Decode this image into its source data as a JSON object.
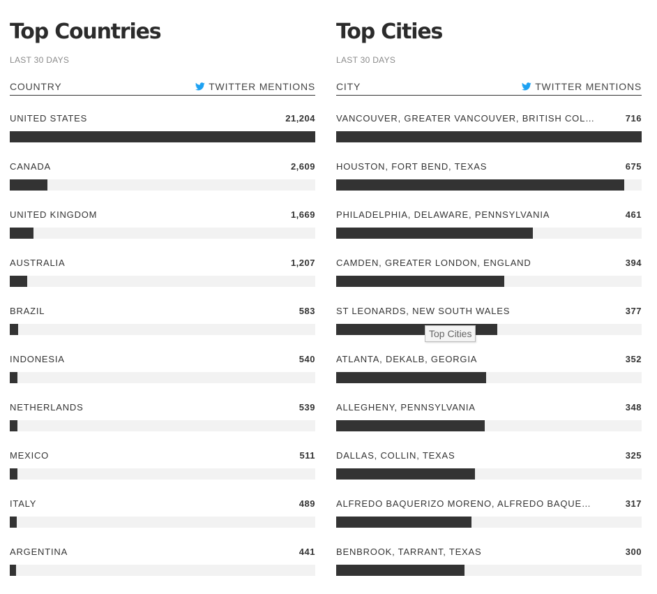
{
  "colors": {
    "bar": "#333333",
    "track": "#f2f2f2",
    "twitter": "#1da1f2"
  },
  "countries": {
    "title": "Top Countries",
    "period": "LAST 30 DAYS",
    "col_left": "COUNTRY",
    "col_right": "TWITTER MENTIONS",
    "max": 21204,
    "rows": [
      {
        "label": "UNITED STATES",
        "value": "21,204",
        "num": 21204
      },
      {
        "label": "CANADA",
        "value": "2,609",
        "num": 2609
      },
      {
        "label": "UNITED KINGDOM",
        "value": "1,669",
        "num": 1669
      },
      {
        "label": "AUSTRALIA",
        "value": "1,207",
        "num": 1207
      },
      {
        "label": "BRAZIL",
        "value": "583",
        "num": 583
      },
      {
        "label": "INDONESIA",
        "value": "540",
        "num": 540
      },
      {
        "label": "NETHERLANDS",
        "value": "539",
        "num": 539
      },
      {
        "label": "MEXICO",
        "value": "511",
        "num": 511
      },
      {
        "label": "ITALY",
        "value": "489",
        "num": 489
      },
      {
        "label": "ARGENTINA",
        "value": "441",
        "num": 441
      }
    ]
  },
  "cities": {
    "title": "Top Cities",
    "period": "LAST 30 DAYS",
    "col_left": "CITY",
    "col_right": "TWITTER MENTIONS",
    "max": 716,
    "rows": [
      {
        "label": "VANCOUVER, GREATER VANCOUVER, BRITISH COLUM...",
        "value": "716",
        "num": 716
      },
      {
        "label": "HOUSTON, FORT BEND, TEXAS",
        "value": "675",
        "num": 675
      },
      {
        "label": "PHILADELPHIA, DELAWARE, PENNSYLVANIA",
        "value": "461",
        "num": 461
      },
      {
        "label": "CAMDEN, GREATER LONDON, ENGLAND",
        "value": "394",
        "num": 394
      },
      {
        "label": "ST LEONARDS, NEW SOUTH WALES",
        "value": "377",
        "num": 377
      },
      {
        "label": "ATLANTA, DEKALB, GEORGIA",
        "value": "352",
        "num": 352
      },
      {
        "label": "ALLEGHENY, PENNSYLVANIA",
        "value": "348",
        "num": 348
      },
      {
        "label": "DALLAS, COLLIN, TEXAS",
        "value": "325",
        "num": 325
      },
      {
        "label": "ALFREDO BAQUERIZO MORENO, ALFREDO BAQUERIZ...",
        "value": "317",
        "num": 317
      },
      {
        "label": "BENBROOK, TARRANT, TEXAS",
        "value": "300",
        "num": 300
      }
    ]
  },
  "tooltip": "Top Cities"
}
